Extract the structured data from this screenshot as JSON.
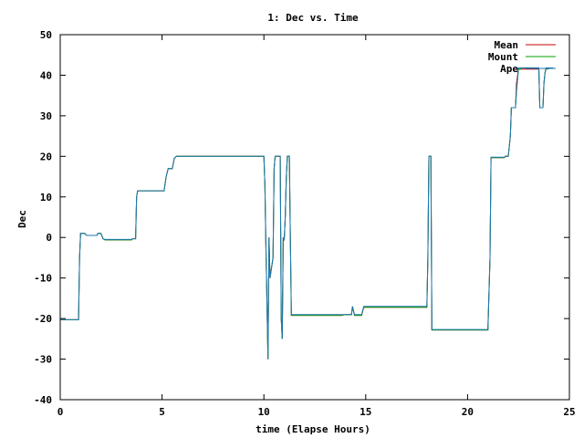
{
  "chart_data": {
    "type": "line",
    "title": "1: Dec vs. Time",
    "xlabel": "time (Elapse Hours)",
    "ylabel": "Dec",
    "xlim": [
      0,
      25
    ],
    "ylim": [
      -40,
      50
    ],
    "xticks": [
      0,
      5,
      10,
      15,
      20,
      25
    ],
    "yticks": [
      -40,
      -30,
      -20,
      -10,
      0,
      10,
      20,
      30,
      40,
      50
    ],
    "grid": false,
    "legend_position": "top-right",
    "series": [
      {
        "name": "Mean",
        "color": "#cc0000",
        "points": [
          [
            0,
            -20.3
          ],
          [
            0.9,
            -20.3
          ],
          [
            0.95,
            -5
          ],
          [
            1.0,
            1
          ],
          [
            1.2,
            1
          ],
          [
            1.3,
            0.5
          ],
          [
            1.8,
            0.5
          ],
          [
            1.85,
            1
          ],
          [
            2.0,
            1
          ],
          [
            2.1,
            -0.3
          ],
          [
            2.2,
            -0.6
          ],
          [
            3.5,
            -0.6
          ],
          [
            3.55,
            -0.3
          ],
          [
            3.7,
            -0.3
          ],
          [
            3.75,
            10
          ],
          [
            3.8,
            11.5
          ],
          [
            5.0,
            11.5
          ],
          [
            5.1,
            11.5
          ],
          [
            5.2,
            15
          ],
          [
            5.3,
            17
          ],
          [
            5.5,
            17
          ],
          [
            5.6,
            19.5
          ],
          [
            5.7,
            20
          ],
          [
            10.0,
            20
          ],
          [
            10.05,
            13
          ],
          [
            10.1,
            -2
          ],
          [
            10.2,
            -30
          ],
          [
            10.25,
            0
          ],
          [
            10.3,
            -10
          ],
          [
            10.45,
            -5
          ],
          [
            10.5,
            17
          ],
          [
            10.55,
            20
          ],
          [
            10.8,
            20
          ],
          [
            10.85,
            -20
          ],
          [
            10.9,
            -25
          ],
          [
            10.95,
            0
          ],
          [
            11.0,
            -0.5
          ],
          [
            11.05,
            5
          ],
          [
            11.1,
            15
          ],
          [
            11.15,
            20
          ],
          [
            11.25,
            20
          ],
          [
            11.3,
            0
          ],
          [
            11.35,
            -19.2
          ],
          [
            13.8,
            -19.2
          ],
          [
            14.0,
            -19
          ],
          [
            14.3,
            -19
          ],
          [
            14.35,
            -17
          ],
          [
            14.45,
            -19.2
          ],
          [
            14.8,
            -19.2
          ],
          [
            14.9,
            -17.2
          ],
          [
            18.0,
            -17.2
          ],
          [
            18.05,
            -5
          ],
          [
            18.1,
            20
          ],
          [
            18.2,
            20
          ],
          [
            18.25,
            -22.8
          ],
          [
            21.0,
            -22.8
          ],
          [
            21.1,
            -5
          ],
          [
            21.15,
            19.7
          ],
          [
            21.8,
            19.7
          ],
          [
            21.85,
            20
          ],
          [
            22.0,
            20
          ],
          [
            22.1,
            25
          ],
          [
            22.15,
            32
          ],
          [
            22.35,
            32
          ],
          [
            22.4,
            38
          ],
          [
            22.5,
            41.5
          ],
          [
            22.6,
            41.5
          ],
          [
            22.65,
            41.5
          ],
          [
            23.5,
            41.5
          ],
          [
            23.55,
            32
          ],
          [
            23.7,
            32
          ],
          [
            23.75,
            38
          ],
          [
            23.8,
            40.5
          ],
          [
            23.85,
            41.5
          ],
          [
            24.2,
            41.8
          ]
        ]
      },
      {
        "name": "Mount",
        "color": "#00a000",
        "points": [
          [
            0,
            -20.3
          ],
          [
            0.9,
            -20.3
          ],
          [
            0.95,
            -5
          ],
          [
            1.0,
            1
          ],
          [
            1.2,
            1
          ],
          [
            1.3,
            0.5
          ],
          [
            1.8,
            0.5
          ],
          [
            1.85,
            1
          ],
          [
            2.0,
            1
          ],
          [
            2.1,
            -0.3
          ],
          [
            2.2,
            -0.6
          ],
          [
            3.5,
            -0.6
          ],
          [
            3.55,
            -0.3
          ],
          [
            3.7,
            -0.3
          ],
          [
            3.75,
            10
          ],
          [
            3.8,
            11.5
          ],
          [
            5.0,
            11.5
          ],
          [
            5.1,
            11.5
          ],
          [
            5.2,
            15
          ],
          [
            5.3,
            17
          ],
          [
            5.5,
            17
          ],
          [
            5.6,
            19.5
          ],
          [
            5.7,
            20
          ],
          [
            10.0,
            20
          ],
          [
            10.05,
            13
          ],
          [
            10.1,
            -2
          ],
          [
            10.2,
            -30
          ],
          [
            10.25,
            0
          ],
          [
            10.3,
            -10
          ],
          [
            10.45,
            -5
          ],
          [
            10.5,
            17
          ],
          [
            10.55,
            20
          ],
          [
            10.8,
            20
          ],
          [
            10.85,
            -20
          ],
          [
            10.9,
            -25
          ],
          [
            10.95,
            0
          ],
          [
            11.0,
            -0.5
          ],
          [
            11.05,
            5
          ],
          [
            11.1,
            15
          ],
          [
            11.15,
            20
          ],
          [
            11.25,
            20
          ],
          [
            11.3,
            0
          ],
          [
            11.35,
            -19.2
          ],
          [
            13.8,
            -19.2
          ],
          [
            14.0,
            -19
          ],
          [
            14.3,
            -19
          ],
          [
            14.35,
            -17
          ],
          [
            14.45,
            -19.2
          ],
          [
            14.8,
            -19.2
          ],
          [
            14.9,
            -17.2
          ],
          [
            18.0,
            -17.2
          ],
          [
            18.05,
            -5
          ],
          [
            18.1,
            20
          ],
          [
            18.2,
            20
          ],
          [
            18.25,
            -22.8
          ],
          [
            21.0,
            -22.8
          ],
          [
            21.1,
            -5
          ],
          [
            21.15,
            19.7
          ],
          [
            21.8,
            19.7
          ],
          [
            21.85,
            20
          ],
          [
            22.0,
            20
          ],
          [
            22.1,
            25
          ],
          [
            22.15,
            32
          ],
          [
            22.35,
            32
          ],
          [
            22.4,
            36
          ],
          [
            22.5,
            41.5
          ],
          [
            22.6,
            41.5
          ],
          [
            22.65,
            41.8
          ],
          [
            23.5,
            41.8
          ],
          [
            23.55,
            32
          ],
          [
            23.7,
            32
          ],
          [
            23.75,
            38
          ],
          [
            23.8,
            40.5
          ],
          [
            23.85,
            41.5
          ],
          [
            24.2,
            41.8
          ]
        ]
      },
      {
        "name": "Ape",
        "color": "#1e78b4",
        "points": [
          [
            0,
            -20.3
          ],
          [
            0.9,
            -20.3
          ],
          [
            0.95,
            -5
          ],
          [
            1.0,
            1
          ],
          [
            1.2,
            1
          ],
          [
            1.3,
            0.5
          ],
          [
            1.8,
            0.5
          ],
          [
            1.85,
            1
          ],
          [
            2.0,
            1
          ],
          [
            2.1,
            -0.3
          ],
          [
            2.2,
            -0.5
          ],
          [
            3.5,
            -0.5
          ],
          [
            3.55,
            -0.3
          ],
          [
            3.7,
            -0.3
          ],
          [
            3.75,
            10
          ],
          [
            3.8,
            11.5
          ],
          [
            5.0,
            11.5
          ],
          [
            5.1,
            11.5
          ],
          [
            5.2,
            15
          ],
          [
            5.3,
            17
          ],
          [
            5.5,
            17
          ],
          [
            5.6,
            19.5
          ],
          [
            5.7,
            20
          ],
          [
            10.0,
            20
          ],
          [
            10.05,
            13
          ],
          [
            10.1,
            -2
          ],
          [
            10.2,
            -30
          ],
          [
            10.25,
            0
          ],
          [
            10.3,
            -10
          ],
          [
            10.45,
            -5
          ],
          [
            10.5,
            17
          ],
          [
            10.55,
            20
          ],
          [
            10.8,
            20
          ],
          [
            10.85,
            -20
          ],
          [
            10.9,
            -25
          ],
          [
            10.95,
            0
          ],
          [
            11.0,
            -0.5
          ],
          [
            11.05,
            5
          ],
          [
            11.1,
            15
          ],
          [
            11.15,
            20
          ],
          [
            11.25,
            20
          ],
          [
            11.3,
            0
          ],
          [
            11.35,
            -19
          ],
          [
            13.8,
            -19
          ],
          [
            14.0,
            -19
          ],
          [
            14.3,
            -19
          ],
          [
            14.35,
            -17
          ],
          [
            14.45,
            -19
          ],
          [
            14.8,
            -19
          ],
          [
            14.9,
            -17
          ],
          [
            18.0,
            -17
          ],
          [
            18.05,
            -5
          ],
          [
            18.1,
            20
          ],
          [
            18.2,
            20
          ],
          [
            18.25,
            -22.7
          ],
          [
            21.0,
            -22.7
          ],
          [
            21.1,
            -5
          ],
          [
            21.15,
            19.8
          ],
          [
            21.8,
            19.8
          ],
          [
            21.85,
            20
          ],
          [
            22.0,
            20
          ],
          [
            22.1,
            25
          ],
          [
            22.15,
            32
          ],
          [
            22.35,
            32
          ],
          [
            22.4,
            36
          ],
          [
            22.5,
            41.8
          ],
          [
            22.6,
            41.8
          ],
          [
            22.65,
            41.8
          ],
          [
            23.5,
            41.8
          ],
          [
            23.55,
            32
          ],
          [
            23.7,
            32
          ],
          [
            23.75,
            38
          ],
          [
            23.8,
            40.5
          ],
          [
            23.85,
            41.8
          ],
          [
            24.2,
            41.8
          ]
        ]
      }
    ]
  }
}
